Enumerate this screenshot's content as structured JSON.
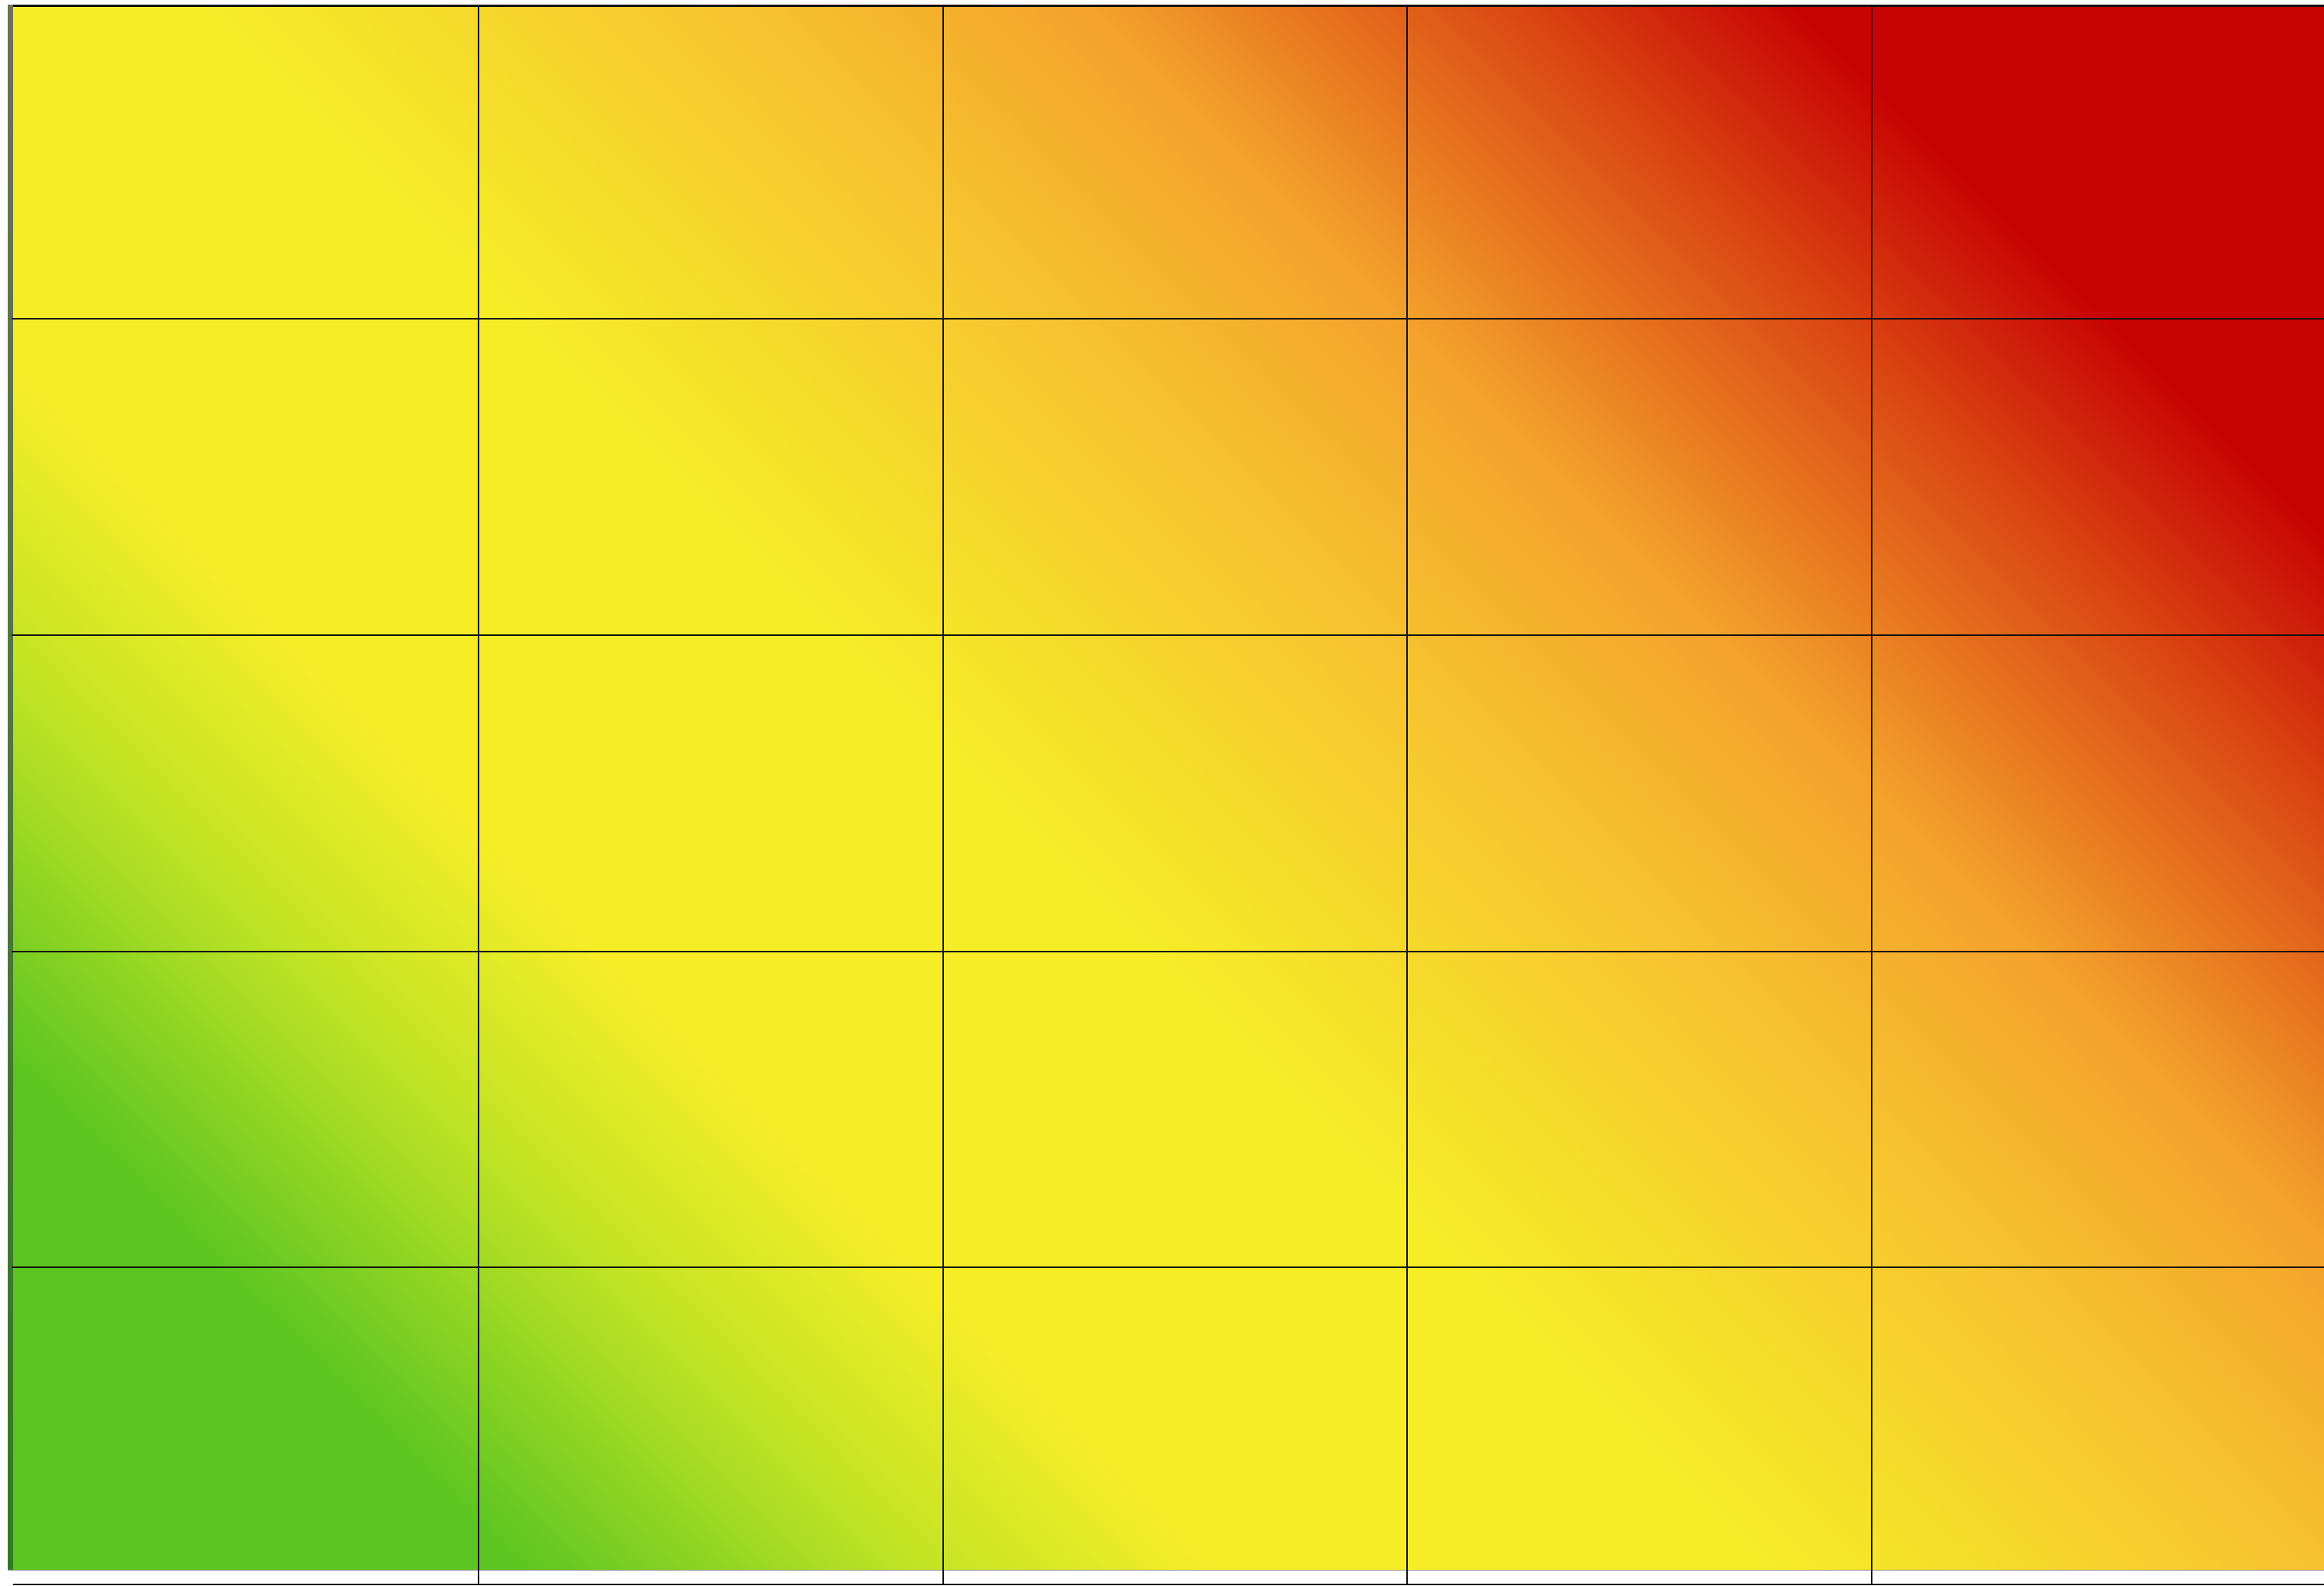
{
  "matrix": {
    "rows": 5,
    "columns": 5,
    "colors": {
      "low": "#5cc521",
      "medium": "#f6ed27",
      "high": "#f3a12b",
      "critical": "#c70303",
      "grid": "#111111"
    }
  }
}
